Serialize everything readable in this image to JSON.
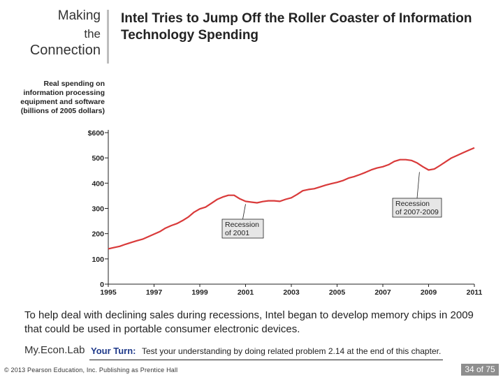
{
  "branding": {
    "line1": "Making",
    "line2": "the",
    "line3": "Connection"
  },
  "slide_title": "Intel Tries to Jump Off the Roller Coaster of Information Technology Spending",
  "body_text": "To help deal with declining sales during recessions, Intel began to develop memory chips in 2009 that could be used in portable consumer electronic devices.",
  "footer": {
    "econlab": "My.Econ.Lab",
    "your_turn_label": "Your Turn:",
    "your_turn_text": "Test your understanding by doing related problem 2.14 at the end of this chapter.",
    "copyright": "© 2013 Pearson Education, Inc. Publishing as Prentice Hall",
    "page": "34 of 75"
  },
  "colors": {
    "line": "#d93a3a",
    "callout_fill": "#e6e6e6",
    "brand_rule": "#bdbdbd",
    "page_box": "#8e8e8e",
    "your_turn": "#1f3a8a"
  },
  "chart_data": {
    "type": "line",
    "ylabel": "Real spending on information processing equipment and software (billions of 2005 dollars)",
    "xlabel": "",
    "ylim": [
      0,
      600
    ],
    "xlim": [
      1995,
      2011
    ],
    "y_ticks": [
      {
        "value": 0,
        "label": "0"
      },
      {
        "value": 100,
        "label": "100"
      },
      {
        "value": 200,
        "label": "200"
      },
      {
        "value": 300,
        "label": "300"
      },
      {
        "value": 400,
        "label": "400"
      },
      {
        "value": 500,
        "label": "500"
      },
      {
        "value": 600,
        "label": "$600"
      }
    ],
    "x_ticks": [
      1995,
      1997,
      1999,
      2001,
      2003,
      2005,
      2007,
      2009,
      2011
    ],
    "grid": false,
    "series": [
      {
        "x": [
          1995.0,
          1995.25,
          1995.5,
          1995.75,
          1996.0,
          1996.25,
          1996.5,
          1996.75,
          1997.0,
          1997.25,
          1997.5,
          1997.75,
          1998.0,
          1998.25,
          1998.5,
          1998.75,
          1999.0,
          1999.25,
          1999.5,
          1999.75,
          2000.0,
          2000.25,
          2000.5,
          2000.75,
          2001.0,
          2001.25,
          2001.5,
          2001.75,
          2002.0,
          2002.25,
          2002.5,
          2002.75,
          2003.0,
          2003.25,
          2003.5,
          2003.75,
          2004.0,
          2004.25,
          2004.5,
          2004.75,
          2005.0,
          2005.25,
          2005.5,
          2005.75,
          2006.0,
          2006.25,
          2006.5,
          2006.75,
          2007.0,
          2007.25,
          2007.5,
          2007.75,
          2008.0,
          2008.25,
          2008.5,
          2008.75,
          2009.0,
          2009.25,
          2009.5,
          2009.75,
          2010.0,
          2010.25,
          2010.5,
          2010.75,
          2011.0
        ],
        "values": [
          140,
          145,
          150,
          158,
          165,
          172,
          178,
          188,
          198,
          208,
          222,
          232,
          240,
          252,
          266,
          285,
          298,
          305,
          320,
          335,
          345,
          352,
          352,
          338,
          328,
          325,
          322,
          327,
          330,
          330,
          328,
          336,
          342,
          355,
          370,
          375,
          378,
          385,
          392,
          398,
          403,
          410,
          420,
          426,
          434,
          443,
          453,
          460,
          465,
          473,
          486,
          493,
          493,
          490,
          480,
          465,
          452,
          456,
          470,
          485,
          500,
          510,
          520,
          530,
          540
        ]
      }
    ],
    "annotations": [
      {
        "text": "Recession of 2001",
        "line1": "Recession",
        "line2": "of 2001",
        "points_to": {
          "x": 2001.0,
          "y": 328
        }
      },
      {
        "text": "Recession of 2007-2009",
        "line1": "Recession",
        "line2": "of 2007-2009",
        "points_to": {
          "x": 2008.6,
          "y": 455
        }
      }
    ]
  }
}
